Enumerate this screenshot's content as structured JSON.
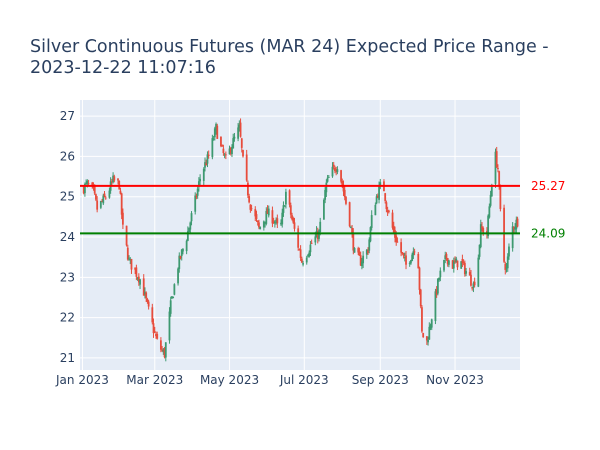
{
  "chart_data": {
    "type": "candlestick",
    "title": "Silver Continuous Futures (MAR 24) Expected Price Range - 2023-12-22 11:07:16",
    "title_lines": [
      "Silver Continuous Futures (MAR 24) Expected Price Range -",
      "2023-12-22 11:07:16"
    ],
    "x_start": "2023-01-01",
    "x_end": "2023-12-22",
    "xlim": [
      "2022-12-30",
      "2023-12-24"
    ],
    "ylim": [
      20.7,
      27.4
    ],
    "yticks": [
      21,
      22,
      23,
      24,
      25,
      26,
      27
    ],
    "xticks": [
      {
        "date": "2023-01-01",
        "label": "Jan 2023"
      },
      {
        "date": "2023-03-01",
        "label": "Mar 2023"
      },
      {
        "date": "2023-05-01",
        "label": "May 2023"
      },
      {
        "date": "2023-07-01",
        "label": "Jul 2023"
      },
      {
        "date": "2023-09-01",
        "label": "Sep 2023"
      },
      {
        "date": "2023-11-01",
        "label": "Nov 2023"
      }
    ],
    "grid": true,
    "increasing_color": "#3d9970",
    "decreasing_color": "#e74c3c",
    "anchors": [
      [
        "2023-01-01",
        25.2
      ],
      [
        "2023-01-05",
        25.3
      ],
      [
        "2023-01-10",
        25.1
      ],
      [
        "2023-01-13",
        24.7
      ],
      [
        "2023-01-20",
        25.0
      ],
      [
        "2023-01-26",
        25.4
      ],
      [
        "2023-01-31",
        25.3
      ],
      [
        "2023-02-03",
        24.2
      ],
      [
        "2023-02-08",
        23.4
      ],
      [
        "2023-02-14",
        23.1
      ],
      [
        "2023-02-18",
        22.9
      ],
      [
        "2023-02-22",
        22.4
      ],
      [
        "2023-02-28",
        21.7
      ],
      [
        "2023-03-04",
        21.3
      ],
      [
        "2023-03-09",
        21.1
      ],
      [
        "2023-03-14",
        22.3
      ],
      [
        "2023-03-20",
        23.3
      ],
      [
        "2023-03-27",
        24.0
      ],
      [
        "2023-04-03",
        24.9
      ],
      [
        "2023-04-08",
        25.6
      ],
      [
        "2023-04-14",
        26.0
      ],
      [
        "2023-04-20",
        26.7
      ],
      [
        "2023-04-24",
        26.2
      ],
      [
        "2023-04-28",
        25.9
      ],
      [
        "2023-05-03",
        26.3
      ],
      [
        "2023-05-09",
        26.7
      ],
      [
        "2023-05-13",
        25.6
      ],
      [
        "2023-05-18",
        24.8
      ],
      [
        "2023-05-25",
        24.2
      ],
      [
        "2023-06-01",
        24.6
      ],
      [
        "2023-06-07",
        24.4
      ],
      [
        "2023-06-11",
        24.1
      ],
      [
        "2023-06-16",
        25.1
      ],
      [
        "2023-06-22",
        24.3
      ],
      [
        "2023-06-29",
        23.4
      ],
      [
        "2023-07-03",
        23.6
      ],
      [
        "2023-07-08",
        23.9
      ],
      [
        "2023-07-13",
        24.1
      ],
      [
        "2023-07-19",
        25.3
      ],
      [
        "2023-07-23",
        25.6
      ],
      [
        "2023-07-28",
        25.8
      ],
      [
        "2023-08-01",
        25.3
      ],
      [
        "2023-08-07",
        24.4
      ],
      [
        "2023-08-11",
        23.6
      ],
      [
        "2023-08-16",
        23.4
      ],
      [
        "2023-08-22",
        23.7
      ],
      [
        "2023-08-26",
        24.7
      ],
      [
        "2023-08-30",
        25.1
      ],
      [
        "2023-09-03",
        25.4
      ],
      [
        "2023-09-06",
        24.8
      ],
      [
        "2023-09-12",
        24.1
      ],
      [
        "2023-09-17",
        23.7
      ],
      [
        "2023-09-22",
        23.3
      ],
      [
        "2023-09-27",
        23.6
      ],
      [
        "2023-10-01",
        23.9
      ],
      [
        "2023-10-05",
        21.6
      ],
      [
        "2023-10-09",
        21.4
      ],
      [
        "2023-10-14",
        22.2
      ],
      [
        "2023-10-19",
        23.0
      ],
      [
        "2023-10-25",
        23.5
      ],
      [
        "2023-10-30",
        23.3
      ],
      [
        "2023-11-05",
        23.4
      ],
      [
        "2023-11-11",
        23.1
      ],
      [
        "2023-11-16",
        22.8
      ],
      [
        "2023-11-19",
        23.2
      ],
      [
        "2023-11-22",
        24.2
      ],
      [
        "2023-11-27",
        24.1
      ],
      [
        "2023-12-01",
        25.4
      ],
      [
        "2023-12-04",
        26.0
      ],
      [
        "2023-12-06",
        25.7
      ],
      [
        "2023-12-10",
        23.5
      ],
      [
        "2023-12-13",
        23.2
      ],
      [
        "2023-12-17",
        24.2
      ],
      [
        "2023-12-22",
        24.4
      ]
    ],
    "hlines": [
      {
        "value": 25.27,
        "label": "25.27",
        "color": "#ff0000"
      },
      {
        "value": 24.09,
        "label": "24.09",
        "color": "#008000"
      }
    ]
  }
}
